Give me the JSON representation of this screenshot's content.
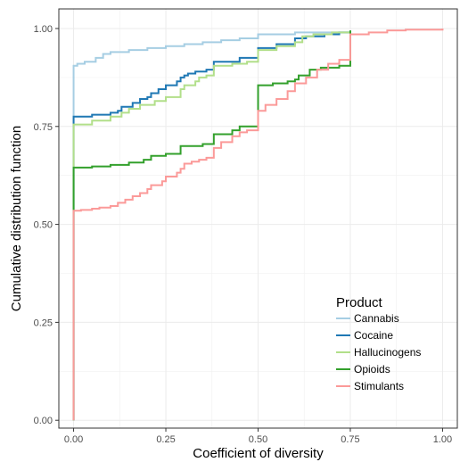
{
  "chart_data": {
    "type": "line",
    "step": true,
    "title": "",
    "xlabel": "Coefficient of diversity",
    "ylabel": "Cumulative distribution function",
    "xlim": [
      -0.04,
      1.04
    ],
    "ylim": [
      -0.02,
      1.05
    ],
    "x_ticks": [
      0.0,
      0.25,
      0.5,
      0.75,
      1.0
    ],
    "x_tick_labels": [
      "0.00",
      "0.25",
      "0.50",
      "0.75",
      "1.00"
    ],
    "y_ticks": [
      0.0,
      0.25,
      0.5,
      0.75,
      1.0
    ],
    "y_tick_labels": [
      "0.00",
      "0.25",
      "0.50",
      "0.75",
      "1.00"
    ],
    "grid": true,
    "legend": {
      "title": "Product",
      "position": "bottom-right"
    },
    "series": [
      {
        "name": "Cannabis",
        "color": "#a6cee3",
        "points": [
          [
            0.0,
            0.0
          ],
          [
            0.0,
            0.905
          ],
          [
            0.01,
            0.91
          ],
          [
            0.03,
            0.915
          ],
          [
            0.06,
            0.925
          ],
          [
            0.08,
            0.935
          ],
          [
            0.1,
            0.94
          ],
          [
            0.15,
            0.945
          ],
          [
            0.2,
            0.95
          ],
          [
            0.25,
            0.955
          ],
          [
            0.3,
            0.96
          ],
          [
            0.35,
            0.965
          ],
          [
            0.4,
            0.97
          ],
          [
            0.45,
            0.975
          ],
          [
            0.5,
            0.975
          ],
          [
            0.5,
            0.985
          ],
          [
            0.6,
            0.99
          ],
          [
            0.7,
            0.99
          ],
          [
            0.75,
            0.995
          ]
        ]
      },
      {
        "name": "Cocaine",
        "color": "#1f78b4",
        "points": [
          [
            0.0,
            0.0
          ],
          [
            0.0,
            0.775
          ],
          [
            0.05,
            0.78
          ],
          [
            0.1,
            0.785
          ],
          [
            0.12,
            0.79
          ],
          [
            0.13,
            0.8
          ],
          [
            0.16,
            0.81
          ],
          [
            0.18,
            0.82
          ],
          [
            0.2,
            0.825
          ],
          [
            0.21,
            0.835
          ],
          [
            0.23,
            0.845
          ],
          [
            0.25,
            0.855
          ],
          [
            0.28,
            0.865
          ],
          [
            0.29,
            0.875
          ],
          [
            0.3,
            0.88
          ],
          [
            0.31,
            0.885
          ],
          [
            0.33,
            0.89
          ],
          [
            0.36,
            0.895
          ],
          [
            0.38,
            0.9
          ],
          [
            0.38,
            0.915
          ],
          [
            0.45,
            0.925
          ],
          [
            0.5,
            0.93
          ],
          [
            0.5,
            0.95
          ],
          [
            0.55,
            0.96
          ],
          [
            0.6,
            0.975
          ],
          [
            0.63,
            0.98
          ],
          [
            0.68,
            0.985
          ],
          [
            0.72,
            0.99
          ],
          [
            0.75,
            0.995
          ]
        ]
      },
      {
        "name": "Hallucinogens",
        "color": "#b2df8a",
        "points": [
          [
            0.0,
            0.0
          ],
          [
            0.0,
            0.755
          ],
          [
            0.05,
            0.765
          ],
          [
            0.1,
            0.775
          ],
          [
            0.13,
            0.785
          ],
          [
            0.15,
            0.795
          ],
          [
            0.18,
            0.805
          ],
          [
            0.22,
            0.815
          ],
          [
            0.25,
            0.825
          ],
          [
            0.29,
            0.845
          ],
          [
            0.3,
            0.855
          ],
          [
            0.33,
            0.865
          ],
          [
            0.34,
            0.875
          ],
          [
            0.36,
            0.88
          ],
          [
            0.38,
            0.885
          ],
          [
            0.38,
            0.905
          ],
          [
            0.43,
            0.91
          ],
          [
            0.47,
            0.915
          ],
          [
            0.5,
            0.92
          ],
          [
            0.5,
            0.945
          ],
          [
            0.55,
            0.955
          ],
          [
            0.6,
            0.965
          ],
          [
            0.62,
            0.98
          ],
          [
            0.65,
            0.985
          ],
          [
            0.7,
            0.99
          ],
          [
            0.75,
            0.995
          ]
        ]
      },
      {
        "name": "Opioids",
        "color": "#33a02c",
        "points": [
          [
            0.0,
            0.0
          ],
          [
            0.0,
            0.535
          ],
          [
            0.0,
            0.645
          ],
          [
            0.05,
            0.648
          ],
          [
            0.1,
            0.652
          ],
          [
            0.15,
            0.658
          ],
          [
            0.19,
            0.665
          ],
          [
            0.21,
            0.675
          ],
          [
            0.25,
            0.68
          ],
          [
            0.29,
            0.685
          ],
          [
            0.29,
            0.7
          ],
          [
            0.35,
            0.705
          ],
          [
            0.38,
            0.71
          ],
          [
            0.38,
            0.73
          ],
          [
            0.43,
            0.74
          ],
          [
            0.45,
            0.75
          ],
          [
            0.5,
            0.76
          ],
          [
            0.5,
            0.855
          ],
          [
            0.54,
            0.86
          ],
          [
            0.58,
            0.865
          ],
          [
            0.6,
            0.87
          ],
          [
            0.61,
            0.88
          ],
          [
            0.64,
            0.895
          ],
          [
            0.67,
            0.9
          ],
          [
            0.72,
            0.905
          ],
          [
            0.75,
            0.915
          ],
          [
            0.75,
            0.995
          ]
        ]
      },
      {
        "name": "Stimulants",
        "color": "#fb9a99",
        "points": [
          [
            0.0,
            0.0
          ],
          [
            0.0,
            0.535
          ],
          [
            0.02,
            0.537
          ],
          [
            0.05,
            0.54
          ],
          [
            0.07,
            0.543
          ],
          [
            0.1,
            0.547
          ],
          [
            0.12,
            0.555
          ],
          [
            0.14,
            0.563
          ],
          [
            0.16,
            0.572
          ],
          [
            0.18,
            0.58
          ],
          [
            0.2,
            0.59
          ],
          [
            0.21,
            0.6
          ],
          [
            0.24,
            0.61
          ],
          [
            0.25,
            0.622
          ],
          [
            0.28,
            0.632
          ],
          [
            0.29,
            0.642
          ],
          [
            0.3,
            0.655
          ],
          [
            0.32,
            0.66
          ],
          [
            0.34,
            0.665
          ],
          [
            0.36,
            0.67
          ],
          [
            0.38,
            0.675
          ],
          [
            0.38,
            0.695
          ],
          [
            0.4,
            0.71
          ],
          [
            0.43,
            0.725
          ],
          [
            0.45,
            0.735
          ],
          [
            0.47,
            0.74
          ],
          [
            0.5,
            0.745
          ],
          [
            0.5,
            0.79
          ],
          [
            0.52,
            0.805
          ],
          [
            0.55,
            0.82
          ],
          [
            0.58,
            0.84
          ],
          [
            0.6,
            0.86
          ],
          [
            0.63,
            0.875
          ],
          [
            0.66,
            0.895
          ],
          [
            0.69,
            0.91
          ],
          [
            0.72,
            0.92
          ],
          [
            0.75,
            0.925
          ],
          [
            0.75,
            0.985
          ],
          [
            0.8,
            0.99
          ],
          [
            0.85,
            0.995
          ],
          [
            0.9,
            0.997
          ],
          [
            1.0,
            1.0
          ]
        ]
      }
    ]
  }
}
